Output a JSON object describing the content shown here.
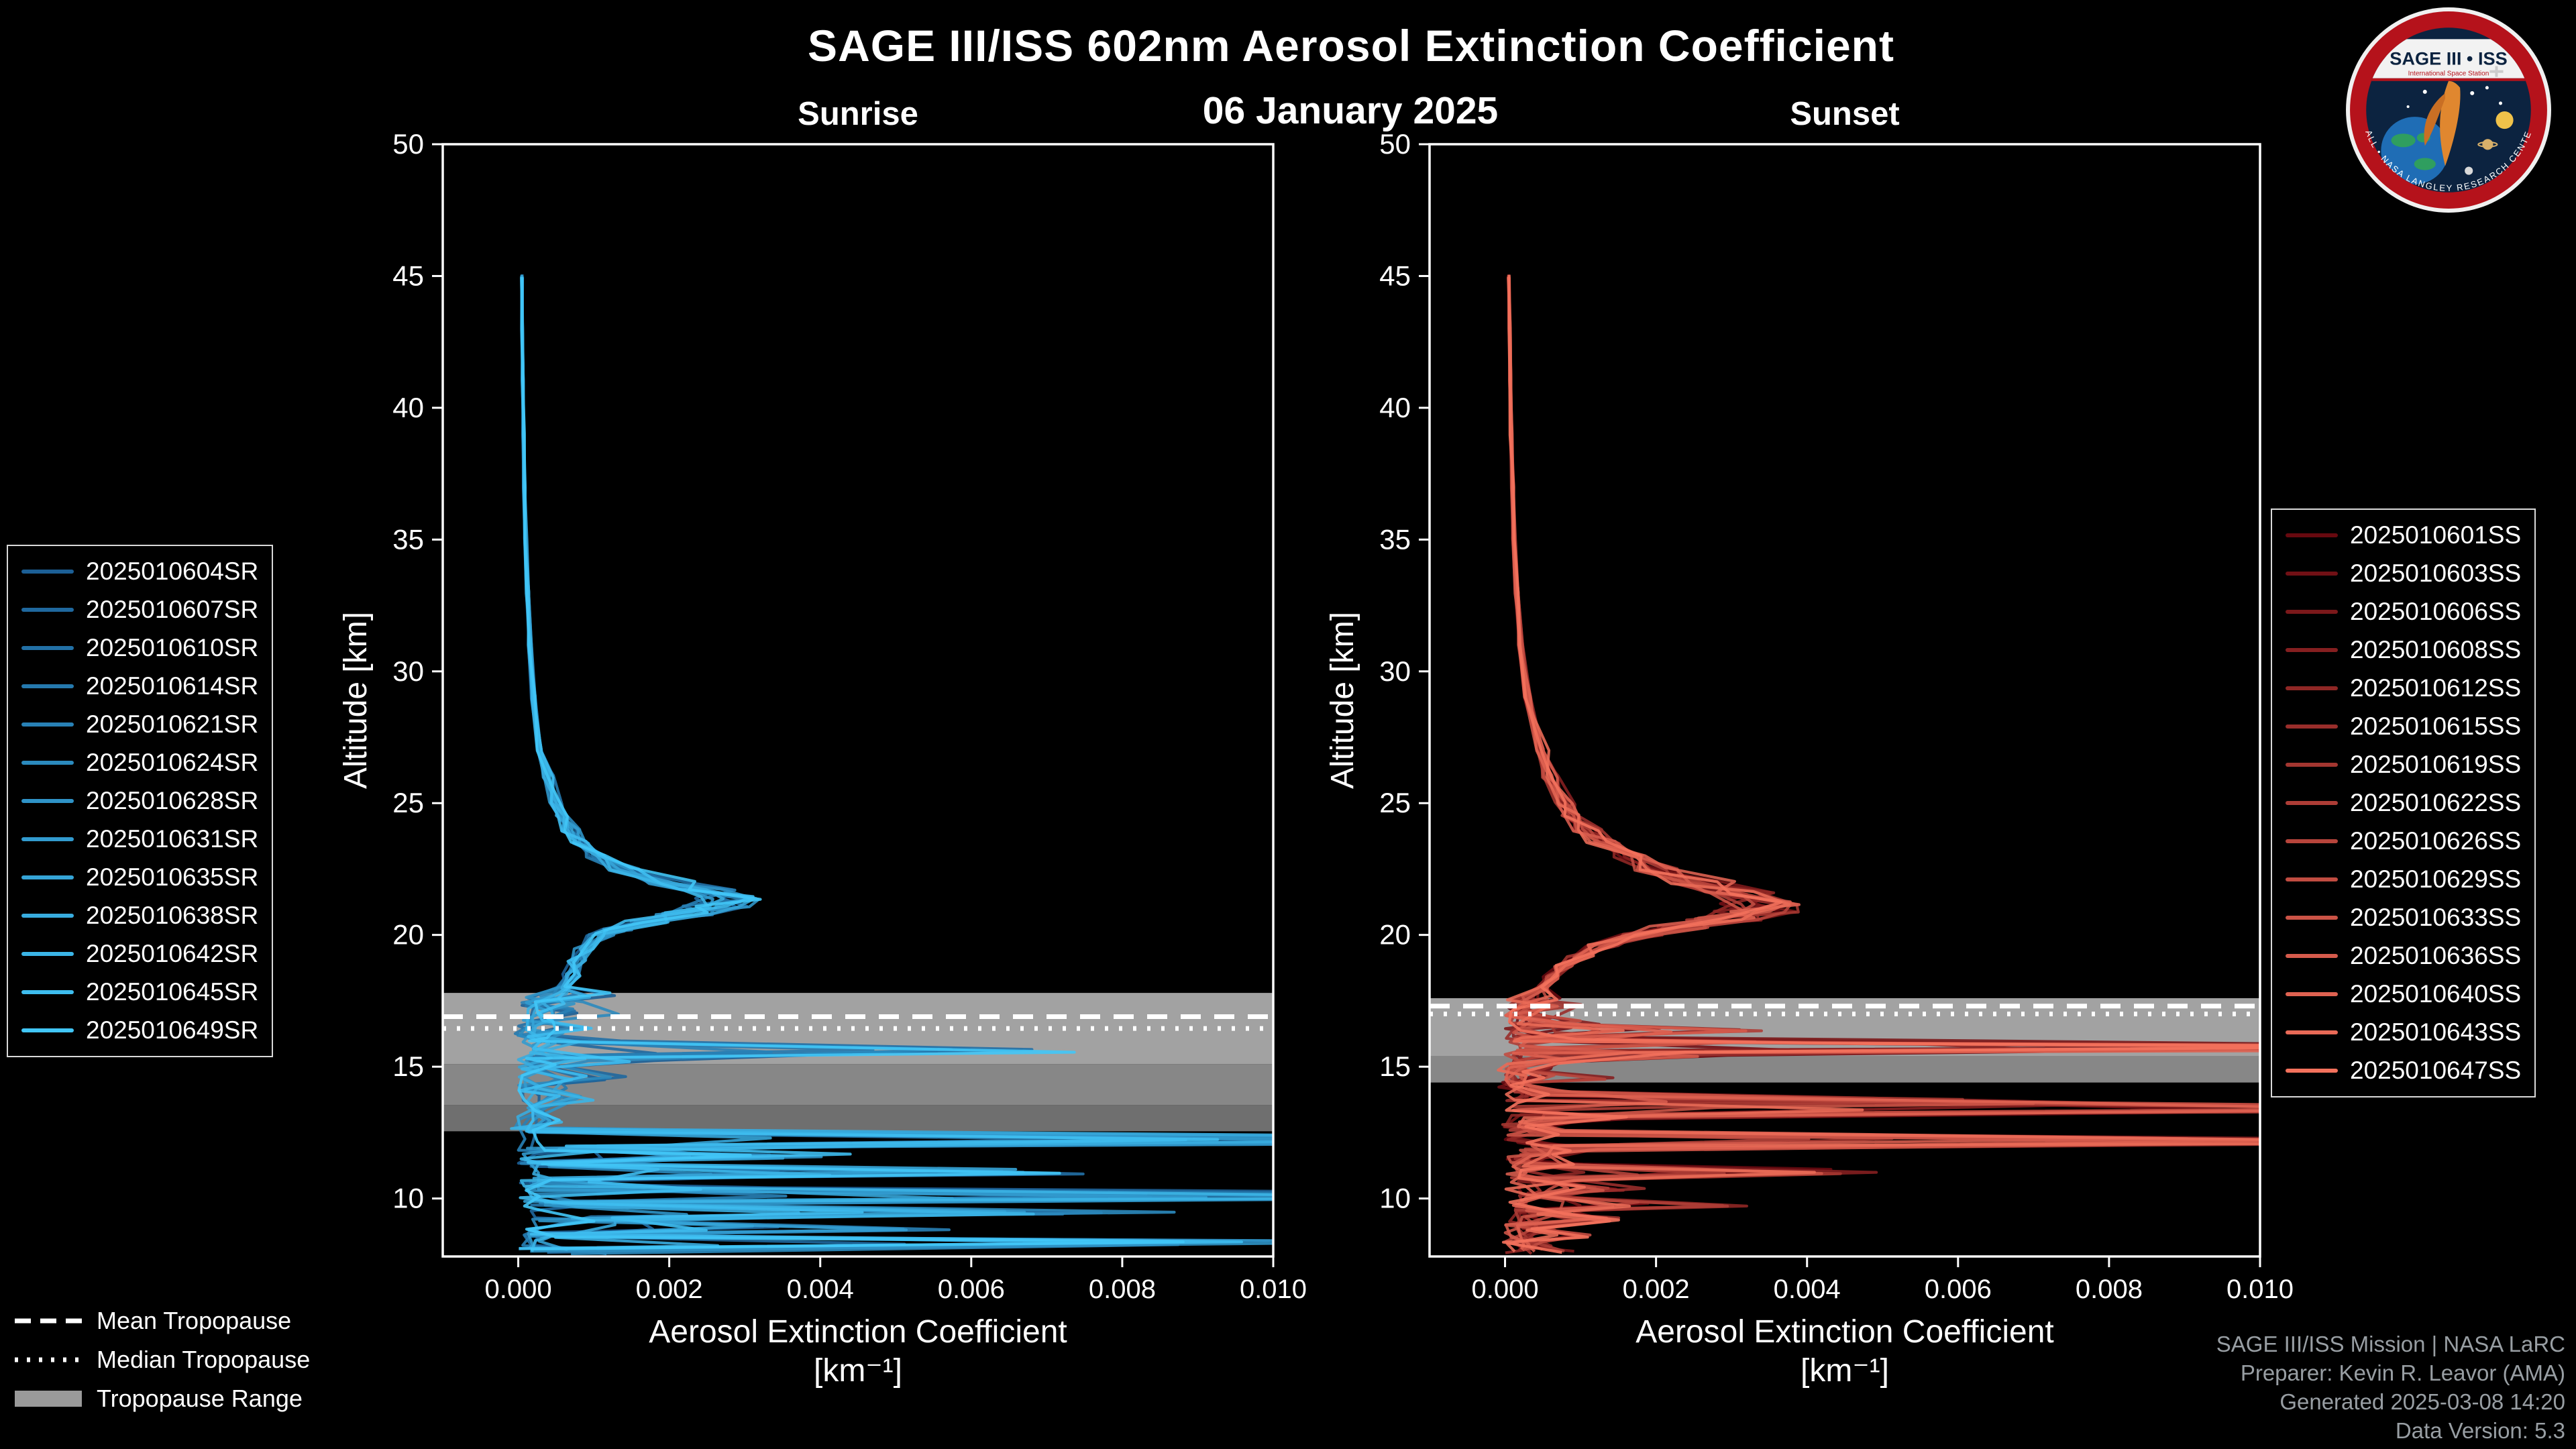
{
  "header": {
    "title": "SAGE III/ISS 602nm Aerosol Extinction Coefficient",
    "date": "06 January 2025"
  },
  "logo": {
    "title": "SAGE III • ISS",
    "subtitle": "International Space Station",
    "ring_text": "BALL • NASA LANGLEY RESEARCH CENTER",
    "colors": {
      "ring": "#b5121b",
      "field": "#0c2340",
      "band": "#f2f2f2",
      "figure": "#e0872f"
    }
  },
  "footer": {
    "credits": [
      "SAGE III/ISS Mission | NASA LaRC",
      "Preparer: Kevin R. Leavor (AMA)",
      "Generated 2025-03-08 14:20",
      "Data Version: 5.3"
    ],
    "color": "#989ea3"
  },
  "tropopause_legend": [
    {
      "style": "dashed",
      "label": "Mean Tropopause"
    },
    {
      "style": "dotted",
      "label": "Median Tropopause"
    },
    {
      "style": "band",
      "label": "Tropopause Range",
      "color": "#9a9a9a"
    }
  ],
  "chart_data": {
    "type": "line",
    "title": "SAGE III/ISS 602nm Aerosol Extinction Coefficient",
    "subtitle": "06 January 2025",
    "xlabel": "Aerosol Extinction Coefficient",
    "xlabel_units": "[km⁻¹]",
    "ylabel": "Altitude [km]",
    "xlim": [
      -0.001,
      0.01
    ],
    "ylim": [
      7.8,
      50
    ],
    "x_ticks": [
      "0.000",
      "0.002",
      "0.004",
      "0.006",
      "0.008",
      "0.010"
    ],
    "x_tick_values": [
      0,
      0.002,
      0.004,
      0.006,
      0.008,
      0.01
    ],
    "y_ticks": [
      50,
      45,
      40,
      35,
      30,
      25,
      20,
      15,
      10
    ],
    "grid": false,
    "legend_position": "outside",
    "panels": [
      {
        "title": "Sunrise",
        "color_start": "#1c5f96",
        "color_end": "#41c6f7",
        "series_names": [
          "2025010604SR",
          "2025010607SR",
          "2025010610SR",
          "2025010614SR",
          "2025010621SR",
          "2025010624SR",
          "2025010628SR",
          "2025010631SR",
          "2025010635SR",
          "2025010638SR",
          "2025010642SR",
          "2025010645SR",
          "2025010649SR"
        ],
        "tropopause": {
          "mean": 16.9,
          "median": 16.45,
          "range": [
            12.55,
            17.8
          ],
          "bands": [
            [
              12.55,
              13.55,
              "#6f6f6f"
            ],
            [
              13.55,
              15.1,
              "#878787"
            ],
            [
              15.1,
              17.8,
              "#a2a2a2"
            ]
          ]
        },
        "profile": {
          "alt": [
            45,
            43,
            41,
            39,
            37,
            35,
            33,
            31,
            29,
            27,
            26,
            25,
            24.5,
            24,
            23.5,
            23,
            22.5,
            22,
            21.7,
            21.4,
            21.1,
            20.8,
            20.5,
            20.2,
            20,
            19.5,
            19,
            18.5,
            18,
            17.7,
            17.4,
            17.1,
            16.8,
            16.5,
            16.2,
            15.9,
            15.6,
            15.3,
            15,
            14.6,
            14.2,
            13.8,
            13.4,
            13,
            12.6,
            12.2,
            11.9,
            11.6,
            11.3,
            11,
            10.7,
            10.4,
            10.1,
            9.8,
            9.5,
            9.2,
            8.9,
            8.6,
            8.3,
            8
          ],
          "ext": [
            5e-05,
            5e-05,
            6e-05,
            7e-05,
            8e-05,
            0.0001,
            0.00012,
            0.00015,
            0.0002,
            0.0003,
            0.0004,
            0.0005,
            0.0006,
            0.0007,
            0.0008,
            0.001,
            0.0014,
            0.002,
            0.0025,
            0.0028,
            0.0026,
            0.0022,
            0.0017,
            0.0013,
            0.0011,
            0.0009,
            0.0008,
            0.0007,
            0.0006,
            0.0008,
            0.0005,
            0.0007,
            0.0004,
            0.0006,
            0.0003,
            0.0008,
            0.0045,
            0.0012,
            0.0004,
            0.0009,
            0.0003,
            0.0006,
            0.0002,
            0.0004,
            0.0001,
            0.0095,
            0.0008,
            0.003,
            0.0003,
            0.005,
            0.0006,
            0.002,
            0.0095,
            0.0005,
            0.006,
            0.001,
            0.0035,
            0.0004,
            0.008,
            0.0006
          ]
        }
      },
      {
        "title": "Sunset",
        "color_start": "#67090f",
        "color_end": "#f3715c",
        "series_names": [
          "2025010601SS",
          "2025010603SS",
          "2025010606SS",
          "2025010608SS",
          "2025010612SS",
          "2025010615SS",
          "2025010619SS",
          "2025010622SS",
          "2025010626SS",
          "2025010629SS",
          "2025010633SS",
          "2025010636SS",
          "2025010640SS",
          "2025010643SS",
          "2025010647SS"
        ],
        "tropopause": {
          "mean": 17.3,
          "median": 17.0,
          "range": [
            14.4,
            17.6
          ],
          "bands": [
            [
              14.4,
              15.4,
              "#878787"
            ],
            [
              15.4,
              17.6,
              "#a2a2a2"
            ]
          ]
        },
        "profile": {
          "alt": [
            45,
            43,
            41,
            39,
            37,
            35,
            33,
            31,
            29,
            27,
            26,
            25,
            24.5,
            24,
            23.5,
            23,
            22.5,
            22,
            21.6,
            21.2,
            20.9,
            20.6,
            20.3,
            20,
            19.6,
            19.2,
            18.8,
            18.4,
            18,
            17.6,
            17.3,
            17,
            16.7,
            16.4,
            16.1,
            15.9,
            15.7,
            15.5,
            15.2,
            14.9,
            14.6,
            14.3,
            14,
            13.7,
            13.4,
            13.1,
            12.8,
            12.5,
            12.2,
            11.9,
            11.6,
            11.3,
            11,
            10.7,
            10.4,
            10.1,
            9.8,
            9.5,
            9.2,
            8.9,
            8.6,
            8.3,
            8
          ],
          "ext": [
            5e-05,
            6e-05,
            7e-05,
            8e-05,
            0.0001,
            0.00012,
            0.00015,
            0.0002,
            0.0003,
            0.0005,
            0.0006,
            0.0008,
            0.0009,
            0.0011,
            0.0013,
            0.0016,
            0.002,
            0.0026,
            0.0031,
            0.0034,
            0.0033,
            0.0029,
            0.0023,
            0.0018,
            0.0013,
            0.001,
            0.0008,
            0.0006,
            0.0005,
            0.0004,
            0.0006,
            0.0003,
            0.001,
            0.0022,
            0.0008,
            0.004,
            0.0095,
            0.002,
            0.0006,
            0.0003,
            0.0008,
            0.0002,
            0.0005,
            0.006,
            0.0095,
            0.001,
            0.0004,
            0.0006,
            0.0085,
            0.0008,
            0.0004,
            0.0006,
            0.003,
            0.0005,
            0.0012,
            0.0004,
            0.002,
            0.0006,
            0.001,
            0.0003,
            0.0008,
            0.0004,
            0.0006
          ]
        }
      }
    ]
  }
}
